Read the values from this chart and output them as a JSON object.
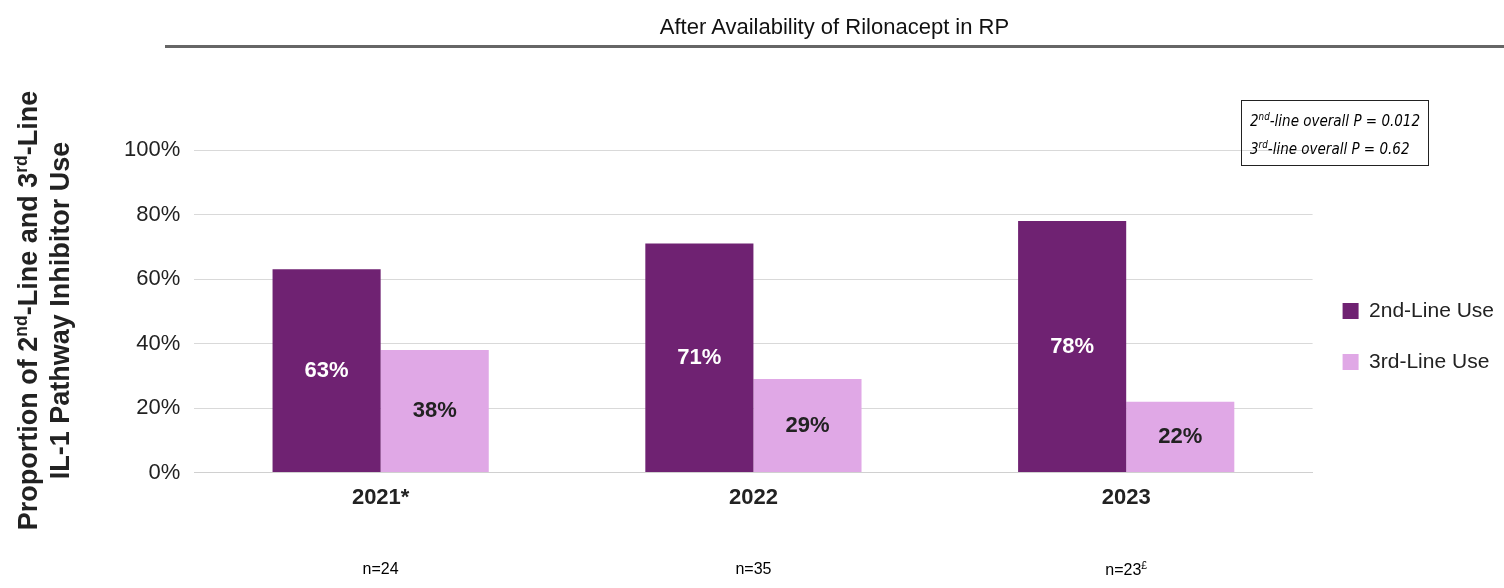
{
  "chart_data": {
    "type": "bar",
    "title": "After Availability of Rilonacept in RP",
    "ylabel": "Proportion of 2$^{nd}$-Line and 3$^{rd}$-Line\nIL-1 Pathway Inhibitor Use",
    "categories": [
      "2021*",
      "2022",
      "2023"
    ],
    "series": [
      {
        "name": "2nd-Line Use",
        "color": "#6f2272",
        "values": [
          63,
          71,
          78
        ],
        "value_labels": [
          "63%",
          "71%",
          "78%"
        ]
      },
      {
        "name": "3rd-Line Use",
        "color": "#e0a8e6",
        "values": [
          38,
          29,
          22
        ],
        "value_labels": [
          "38%",
          "29%",
          "22%"
        ]
      }
    ],
    "ylim": [
      0,
      100
    ],
    "yticks": [
      {
        "value": 0,
        "label": "0%"
      },
      {
        "value": 20,
        "label": "20%"
      },
      {
        "value": 40,
        "label": "40%"
      },
      {
        "value": 60,
        "label": "60%"
      },
      {
        "value": 80,
        "label": "80%"
      },
      {
        "value": 100,
        "label": "100%"
      }
    ],
    "grid": "y",
    "legend": "right",
    "annotations": [
      "2$^{nd}$-line overall P = 0.012\n3$^{rd}$-line overall P = 0.62",
      "n=24",
      "n=35",
      "n=23$^{£}$"
    ]
  }
}
